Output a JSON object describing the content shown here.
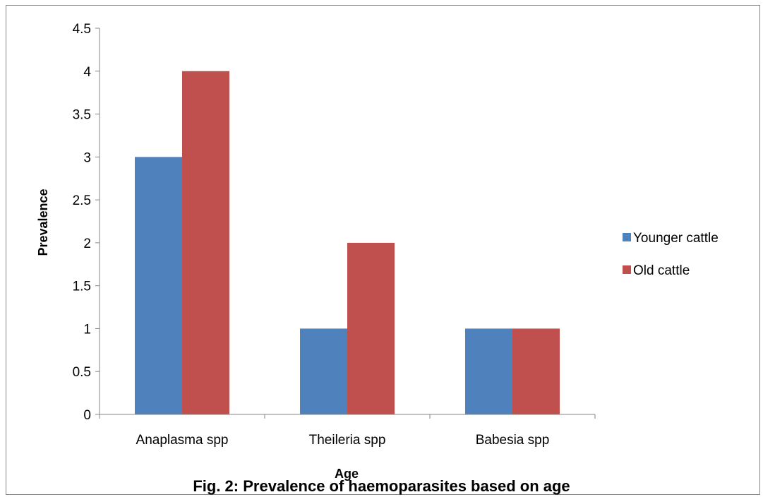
{
  "chart_data": {
    "type": "bar",
    "categories": [
      "Anaplasma spp",
      "Theileria spp",
      "Babesia spp"
    ],
    "series": [
      {
        "name": "Younger cattle",
        "values": [
          3,
          1,
          1
        ],
        "color": "#4F81BD"
      },
      {
        "name": "Old cattle",
        "values": [
          4,
          2,
          1
        ],
        "color": "#C0504D"
      }
    ],
    "xlabel": "Age",
    "ylabel": "Prevalence",
    "ylim": [
      0,
      4.5
    ],
    "yticks": [
      "0",
      "0.5",
      "1",
      "1.5",
      "2",
      "2.5",
      "3",
      "3.5",
      "4",
      "4.5"
    ],
    "grid": false,
    "legend_position": "right"
  },
  "caption": "Fig. 2: Prevalence of haemoparasites based on age"
}
